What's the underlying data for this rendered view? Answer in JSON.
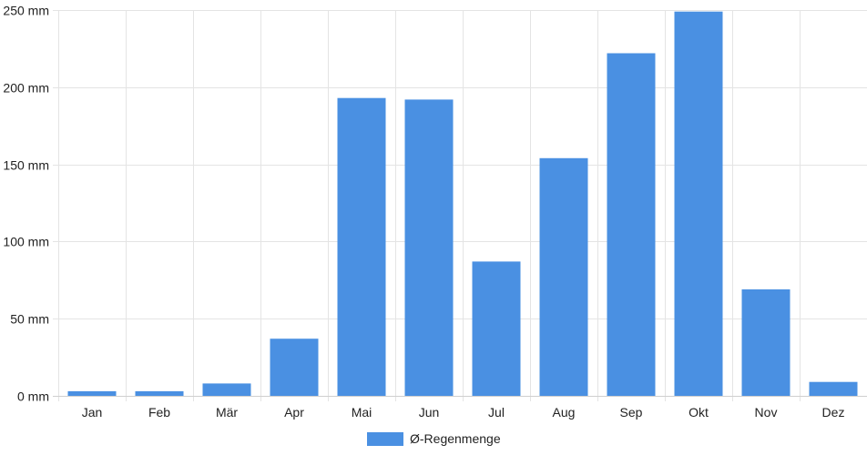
{
  "chart_data": {
    "type": "bar",
    "categories": [
      "Jan",
      "Feb",
      "Mär",
      "Apr",
      "Mai",
      "Jun",
      "Jul",
      "Aug",
      "Sep",
      "Okt",
      "Nov",
      "Dez"
    ],
    "series": [
      {
        "name": "Ø-Regenmenge",
        "values": [
          3,
          3,
          8,
          37,
          193,
          192,
          87,
          154,
          222,
          249,
          69,
          9
        ],
        "color": "#4a90e2"
      }
    ],
    "y_ticks": [
      "0 mm",
      "50 mm",
      "100 mm",
      "150 mm",
      "200 mm",
      "250 mm"
    ],
    "ylim": [
      0,
      250
    ],
    "grid": true,
    "legend_position": "bottom"
  }
}
